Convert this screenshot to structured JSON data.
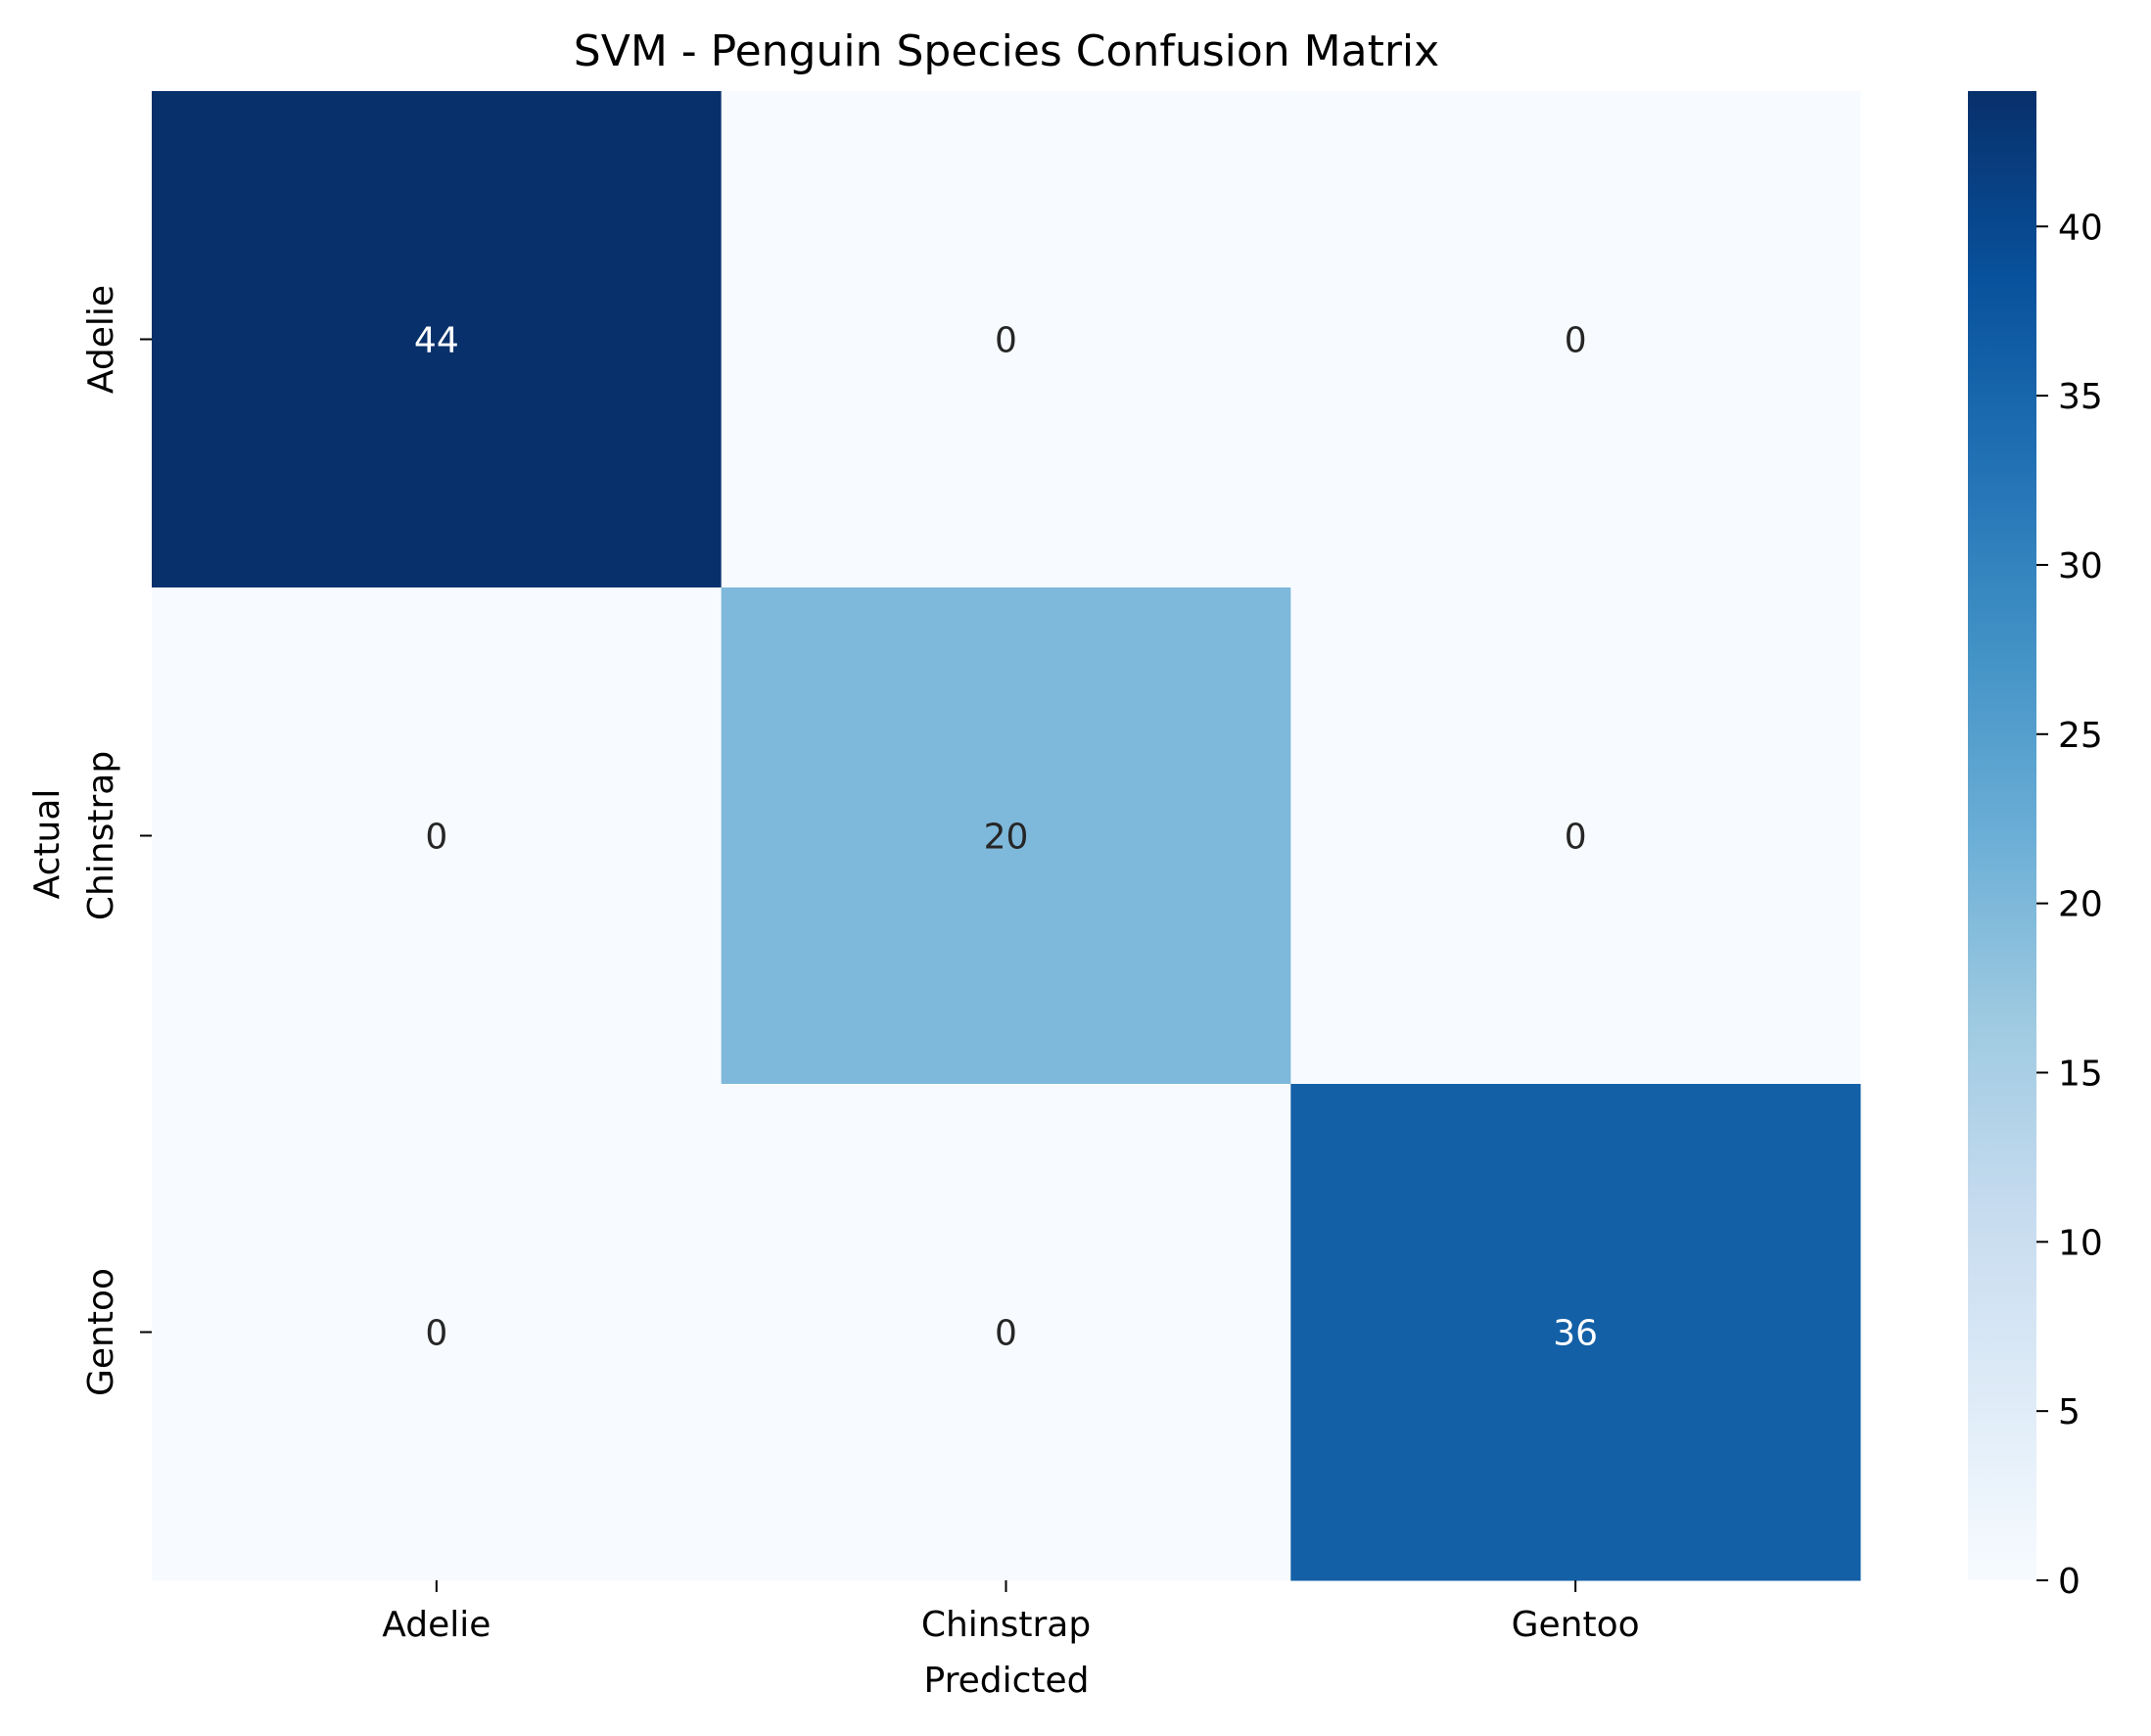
{
  "chart_data": {
    "type": "heatmap",
    "title": "SVM - Penguin Species Confusion Matrix",
    "xlabel": "Predicted",
    "ylabel": "Actual",
    "x_categories": [
      "Adelie",
      "Chinstrap",
      "Gentoo"
    ],
    "y_categories": [
      "Adelie",
      "Chinstrap",
      "Gentoo"
    ],
    "values": [
      [
        44,
        0,
        0
      ],
      [
        0,
        20,
        0
      ],
      [
        0,
        0,
        36
      ]
    ],
    "colormap": "Blues",
    "colorbar": {
      "range": [
        0,
        44
      ],
      "ticks": [
        "0",
        "5",
        "10",
        "15",
        "20",
        "25",
        "30",
        "35",
        "40"
      ]
    },
    "colors": {
      "min": "#f7fbff",
      "max": "#08306b",
      "text_dark": "#262626",
      "text_light": "#ffffff"
    }
  }
}
